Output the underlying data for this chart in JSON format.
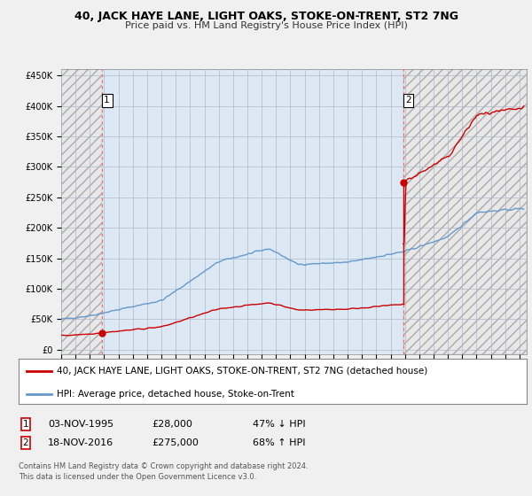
{
  "title": "40, JACK HAYE LANE, LIGHT OAKS, STOKE-ON-TRENT, ST2 7NG",
  "subtitle": "Price paid vs. HM Land Registry's House Price Index (HPI)",
  "xlim_left": 1993.0,
  "xlim_right": 2025.5,
  "ylim_bottom": -8000,
  "ylim_top": 460000,
  "yticks": [
    0,
    50000,
    100000,
    150000,
    200000,
    250000,
    300000,
    350000,
    400000,
    450000
  ],
  "ytick_labels": [
    "£0",
    "£50K",
    "£100K",
    "£150K",
    "£200K",
    "£250K",
    "£300K",
    "£350K",
    "£400K",
    "£450K"
  ],
  "xticks": [
    1993,
    1994,
    1995,
    1996,
    1997,
    1998,
    1999,
    2000,
    2001,
    2002,
    2003,
    2004,
    2005,
    2006,
    2007,
    2008,
    2009,
    2010,
    2011,
    2012,
    2013,
    2014,
    2015,
    2016,
    2017,
    2018,
    2019,
    2020,
    2021,
    2022,
    2023,
    2024,
    2025
  ],
  "background_color": "#f0f0f0",
  "plot_bg_color": "#dce9f5",
  "grid_color": "#b0b8c8",
  "red_line_color": "#cc0000",
  "blue_line_color": "#6699cc",
  "sale1_x": 1995.84,
  "sale1_y": 28000,
  "sale2_x": 2016.88,
  "sale2_y": 275000,
  "vline1_x": 1995.84,
  "vline2_x": 2016.88,
  "legend1_label": "40, JACK HAYE LANE, LIGHT OAKS, STOKE-ON-TRENT, ST2 7NG (detached house)",
  "legend2_label": "HPI: Average price, detached house, Stoke-on-Trent",
  "table_row1": [
    "1",
    "03-NOV-1995",
    "£28,000",
    "47% ↓ HPI"
  ],
  "table_row2": [
    "2",
    "18-NOV-2016",
    "£275,000",
    "68% ↑ HPI"
  ],
  "footer1": "Contains HM Land Registry data © Crown copyright and database right 2024.",
  "footer2": "This data is licensed under the Open Government Licence v3.0.",
  "title_fontsize": 9,
  "subtitle_fontsize": 8,
  "tick_fontsize": 7,
  "legend_fontsize": 7.5,
  "table_fontsize": 8
}
